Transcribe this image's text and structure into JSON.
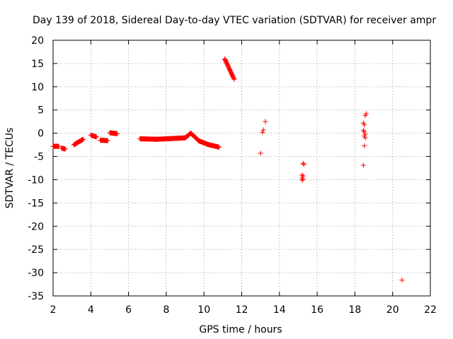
{
  "chart_data": {
    "type": "scatter",
    "title": "Day 139 of 2018, Sidereal Day-to-day VTEC variation (SDTVAR) for receiver ampr",
    "xlabel": "GPS time / hours",
    "ylabel": "SDTVAR / TECUs",
    "xlim": [
      2,
      22
    ],
    "ylim": [
      -35,
      20
    ],
    "xticks": [
      2,
      4,
      6,
      8,
      10,
      12,
      14,
      16,
      18,
      20,
      22
    ],
    "yticks": [
      20,
      15,
      10,
      5,
      0,
      -5,
      -10,
      -15,
      -20,
      -25,
      -30,
      -35
    ],
    "grid": true,
    "marker": "+",
    "series_color": "#ff0000",
    "segments": [
      {
        "x0": 2.0,
        "x1": 2.3,
        "y0": -2.8,
        "y1": -2.8
      },
      {
        "x0": 2.45,
        "x1": 2.65,
        "y0": -3.2,
        "y1": -3.4
      },
      {
        "x0": 3.1,
        "x1": 3.3,
        "y0": -2.5,
        "y1": -2.0
      },
      {
        "x0": 3.3,
        "x1": 3.6,
        "y0": -2.0,
        "y1": -1.3
      },
      {
        "x0": 4.0,
        "x1": 4.3,
        "y0": -0.4,
        "y1": -0.8
      },
      {
        "x0": 4.5,
        "x1": 4.9,
        "y0": -1.5,
        "y1": -1.6
      },
      {
        "x0": 5.0,
        "x1": 5.4,
        "y0": 0.1,
        "y1": -0.1
      },
      {
        "x0": 6.6,
        "x1": 7.5,
        "y0": -1.2,
        "y1": -1.3
      },
      {
        "x0": 7.5,
        "x1": 9.0,
        "y0": -1.3,
        "y1": -1.0
      },
      {
        "x0": 9.0,
        "x1": 9.3,
        "y0": -1.0,
        "y1": 0.0
      },
      {
        "x0": 9.3,
        "x1": 9.7,
        "y0": 0.0,
        "y1": -1.5
      },
      {
        "x0": 9.7,
        "x1": 10.2,
        "y0": -1.6,
        "y1": -2.4
      },
      {
        "x0": 10.2,
        "x1": 10.8,
        "y0": -2.4,
        "y1": -3.0
      },
      {
        "x0": 11.1,
        "x1": 11.6,
        "y0": 16.0,
        "y1": 11.6
      }
    ],
    "points": [
      {
        "x": 13.0,
        "y": -4.3
      },
      {
        "x": 13.1,
        "y": 0.2
      },
      {
        "x": 13.15,
        "y": 0.7
      },
      {
        "x": 13.25,
        "y": 2.5
      },
      {
        "x": 15.25,
        "y": -6.5
      },
      {
        "x": 15.3,
        "y": -6.7
      },
      {
        "x": 15.2,
        "y": -9.0
      },
      {
        "x": 15.25,
        "y": -9.2
      },
      {
        "x": 15.2,
        "y": -9.6
      },
      {
        "x": 15.25,
        "y": -9.9
      },
      {
        "x": 15.2,
        "y": -10.1
      },
      {
        "x": 18.45,
        "y": 2.2
      },
      {
        "x": 18.5,
        "y": 1.8
      },
      {
        "x": 18.45,
        "y": 0.6
      },
      {
        "x": 18.5,
        "y": 0.3
      },
      {
        "x": 18.55,
        "y": -0.2
      },
      {
        "x": 18.5,
        "y": -0.6
      },
      {
        "x": 18.55,
        "y": -1.0
      },
      {
        "x": 18.5,
        "y": -2.7
      },
      {
        "x": 18.45,
        "y": -6.9
      },
      {
        "x": 18.55,
        "y": 3.8
      },
      {
        "x": 18.6,
        "y": 4.2
      },
      {
        "x": 20.5,
        "y": -31.6
      }
    ]
  }
}
